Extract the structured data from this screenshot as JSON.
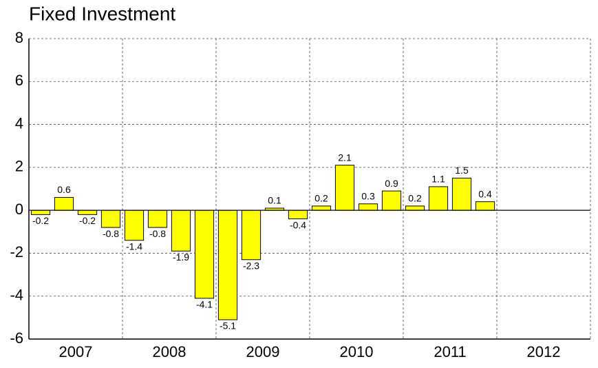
{
  "chart_data": {
    "type": "bar",
    "title": "Fixed Investment",
    "groups": [
      "2007",
      "2008",
      "2009",
      "2010",
      "2011",
      "2012"
    ],
    "values": [
      -0.2,
      0.6,
      -0.2,
      -0.8,
      -1.4,
      -0.8,
      -1.9,
      -4.1,
      -5.1,
      -2.3,
      0.1,
      -0.4,
      0.2,
      2.1,
      0.3,
      0.9,
      0.2,
      1.1,
      1.5,
      0.4,
      null,
      null,
      null,
      null
    ],
    "color": "#ffff00",
    "ylim": [
      -6,
      8
    ],
    "yticks": [
      -6,
      -4,
      -2,
      0,
      2,
      4,
      6,
      8
    ],
    "grid": true
  }
}
